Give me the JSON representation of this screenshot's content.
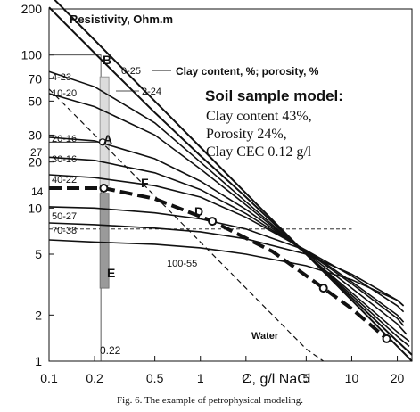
{
  "caption": "Fig. 6. The example of petrophysical modeling.",
  "chart_data": {
    "type": "line",
    "x_scale": "log",
    "y_scale": "log",
    "xlim": [
      0.1,
      25
    ],
    "ylim": [
      1,
      200
    ],
    "ylabel": "Resistivity, Ohm.m",
    "xlabel": "C, g/l NaCl",
    "x_ticks": [
      0.1,
      0.2,
      0.5,
      1,
      2,
      5,
      10,
      20
    ],
    "x_tick_labels": [
      "0.1",
      "0.2",
      "0.5",
      "1",
      "2",
      "5",
      "10",
      "20"
    ],
    "y_ticks": [
      1,
      2,
      5,
      10,
      20,
      30,
      50,
      70,
      100,
      200
    ],
    "y_tick_labels": [
      "1",
      "2",
      "5",
      "10",
      "20",
      "30",
      "50",
      "70",
      "100",
      "200"
    ],
    "legend_text": "Clay content, %; porosity, %",
    "legend_sample": "0-25",
    "model": {
      "title": "Soil sample model:",
      "lines": [
        "Clay content 43%,",
        "Porosity 24%,",
        "Clay CEC 0.12 g/l"
      ]
    },
    "series": [
      {
        "name": "0-25",
        "x": [
          0.1,
          0.2,
          0.5,
          1,
          2,
          5,
          10,
          20,
          25
        ],
        "y": [
          250,
          125,
          50,
          25,
          12.5,
          5,
          2.5,
          1.25,
          1
        ]
      },
      {
        "name": "2-24",
        "x": [
          0.1,
          0.2,
          0.5,
          1,
          2,
          5,
          10,
          20,
          25
        ],
        "y": [
          205,
          103,
          42,
          22,
          11.8,
          5,
          2.6,
          1.35,
          1.1
        ]
      },
      {
        "name": "4-23",
        "x": [
          0.1,
          0.2,
          0.5,
          1,
          2,
          5,
          10,
          20,
          24
        ],
        "y": [
          78,
          62,
          36,
          20,
          11,
          5,
          2.7,
          1.45,
          1.25
        ]
      },
      {
        "name": "10-20",
        "x": [
          0.1,
          0.2,
          0.5,
          1,
          2,
          5,
          10,
          20,
          24
        ],
        "y": [
          56,
          46,
          30,
          18,
          10.5,
          5,
          2.8,
          1.55,
          1.35
        ]
      },
      {
        "name": "20-16",
        "x": [
          0.1,
          0.2,
          0.5,
          1,
          2,
          5,
          10,
          20,
          23
        ],
        "y": [
          29,
          27.5,
          21,
          15,
          9.8,
          5.1,
          3,
          1.75,
          1.5
        ]
      },
      {
        "name": "30-16",
        "x": [
          0.1,
          0.2,
          0.5,
          1,
          2,
          5,
          10,
          20,
          22
        ],
        "y": [
          21.5,
          20.5,
          17,
          13.2,
          9.2,
          5.2,
          3.2,
          1.9,
          1.7
        ]
      },
      {
        "name": "40-22",
        "x": [
          0.1,
          0.2,
          0.5,
          1,
          2,
          5,
          10,
          20,
          22
        ],
        "y": [
          16.5,
          15.8,
          14,
          11.8,
          8.7,
          5.3,
          3.3,
          2.0,
          1.8
        ]
      },
      {
        "name": "50-27",
        "x": [
          0.1,
          0.2,
          0.5,
          1,
          2,
          5,
          10,
          20,
          22
        ],
        "y": [
          10.2,
          10,
          9.3,
          8.5,
          7.3,
          5.3,
          3.6,
          2.3,
          2.1
        ]
      },
      {
        "name": "70-38",
        "x": [
          0.1,
          0.2,
          0.5,
          1,
          2,
          5,
          10,
          20,
          22
        ],
        "y": [
          8,
          7.8,
          7.4,
          7,
          6.3,
          5,
          3.7,
          2.5,
          2.3
        ]
      },
      {
        "name": "100-55",
        "x": [
          0.1,
          0.2,
          0.5,
          1,
          2,
          5,
          10,
          20,
          22
        ],
        "y": [
          6.2,
          6,
          5.8,
          5.5,
          5,
          4.2,
          3.4,
          2.5,
          2.3
        ]
      },
      {
        "name": "Water",
        "x": [
          0.1,
          0.2,
          0.5,
          1,
          2,
          5,
          6.5
        ],
        "y": [
          60,
          30,
          12,
          6,
          3,
          1.2,
          1
        ]
      }
    ],
    "model_curve": {
      "x": [
        0.1,
        0.23,
        0.5,
        1.2,
        3,
        6.5,
        10,
        17
      ],
      "y": [
        13.5,
        13.5,
        11.5,
        8.2,
        5.2,
        3,
        2.2,
        1.4
      ],
      "points": [
        {
          "x": 0.23,
          "y": 13.5
        },
        {
          "x": 1.2,
          "y": 8.2
        },
        {
          "x": 6.5,
          "y": 3
        },
        {
          "x": 17,
          "y": 1.4
        }
      ]
    },
    "annotations": {
      "A": {
        "label": "A",
        "x": 0.22,
        "y": 27
      },
      "B": {
        "label": "B",
        "x": 0.22,
        "y": 100
      },
      "D": {
        "label": "D",
        "x": 1.0,
        "y": 9.3
      },
      "E": {
        "label": "E",
        "x": 0.22,
        "y": 3.8
      },
      "F": {
        "label": "F",
        "x": 0.27,
        "y": 13.5
      },
      "val27": "27",
      "val14": "14",
      "val022": "0.22"
    },
    "bars": [
      {
        "name": "light-bar",
        "x": 0.22,
        "y_range": [
          14,
          72
        ]
      },
      {
        "name": "dark-bar",
        "x": 0.22,
        "y_range": [
          3,
          12.5
        ]
      }
    ]
  }
}
